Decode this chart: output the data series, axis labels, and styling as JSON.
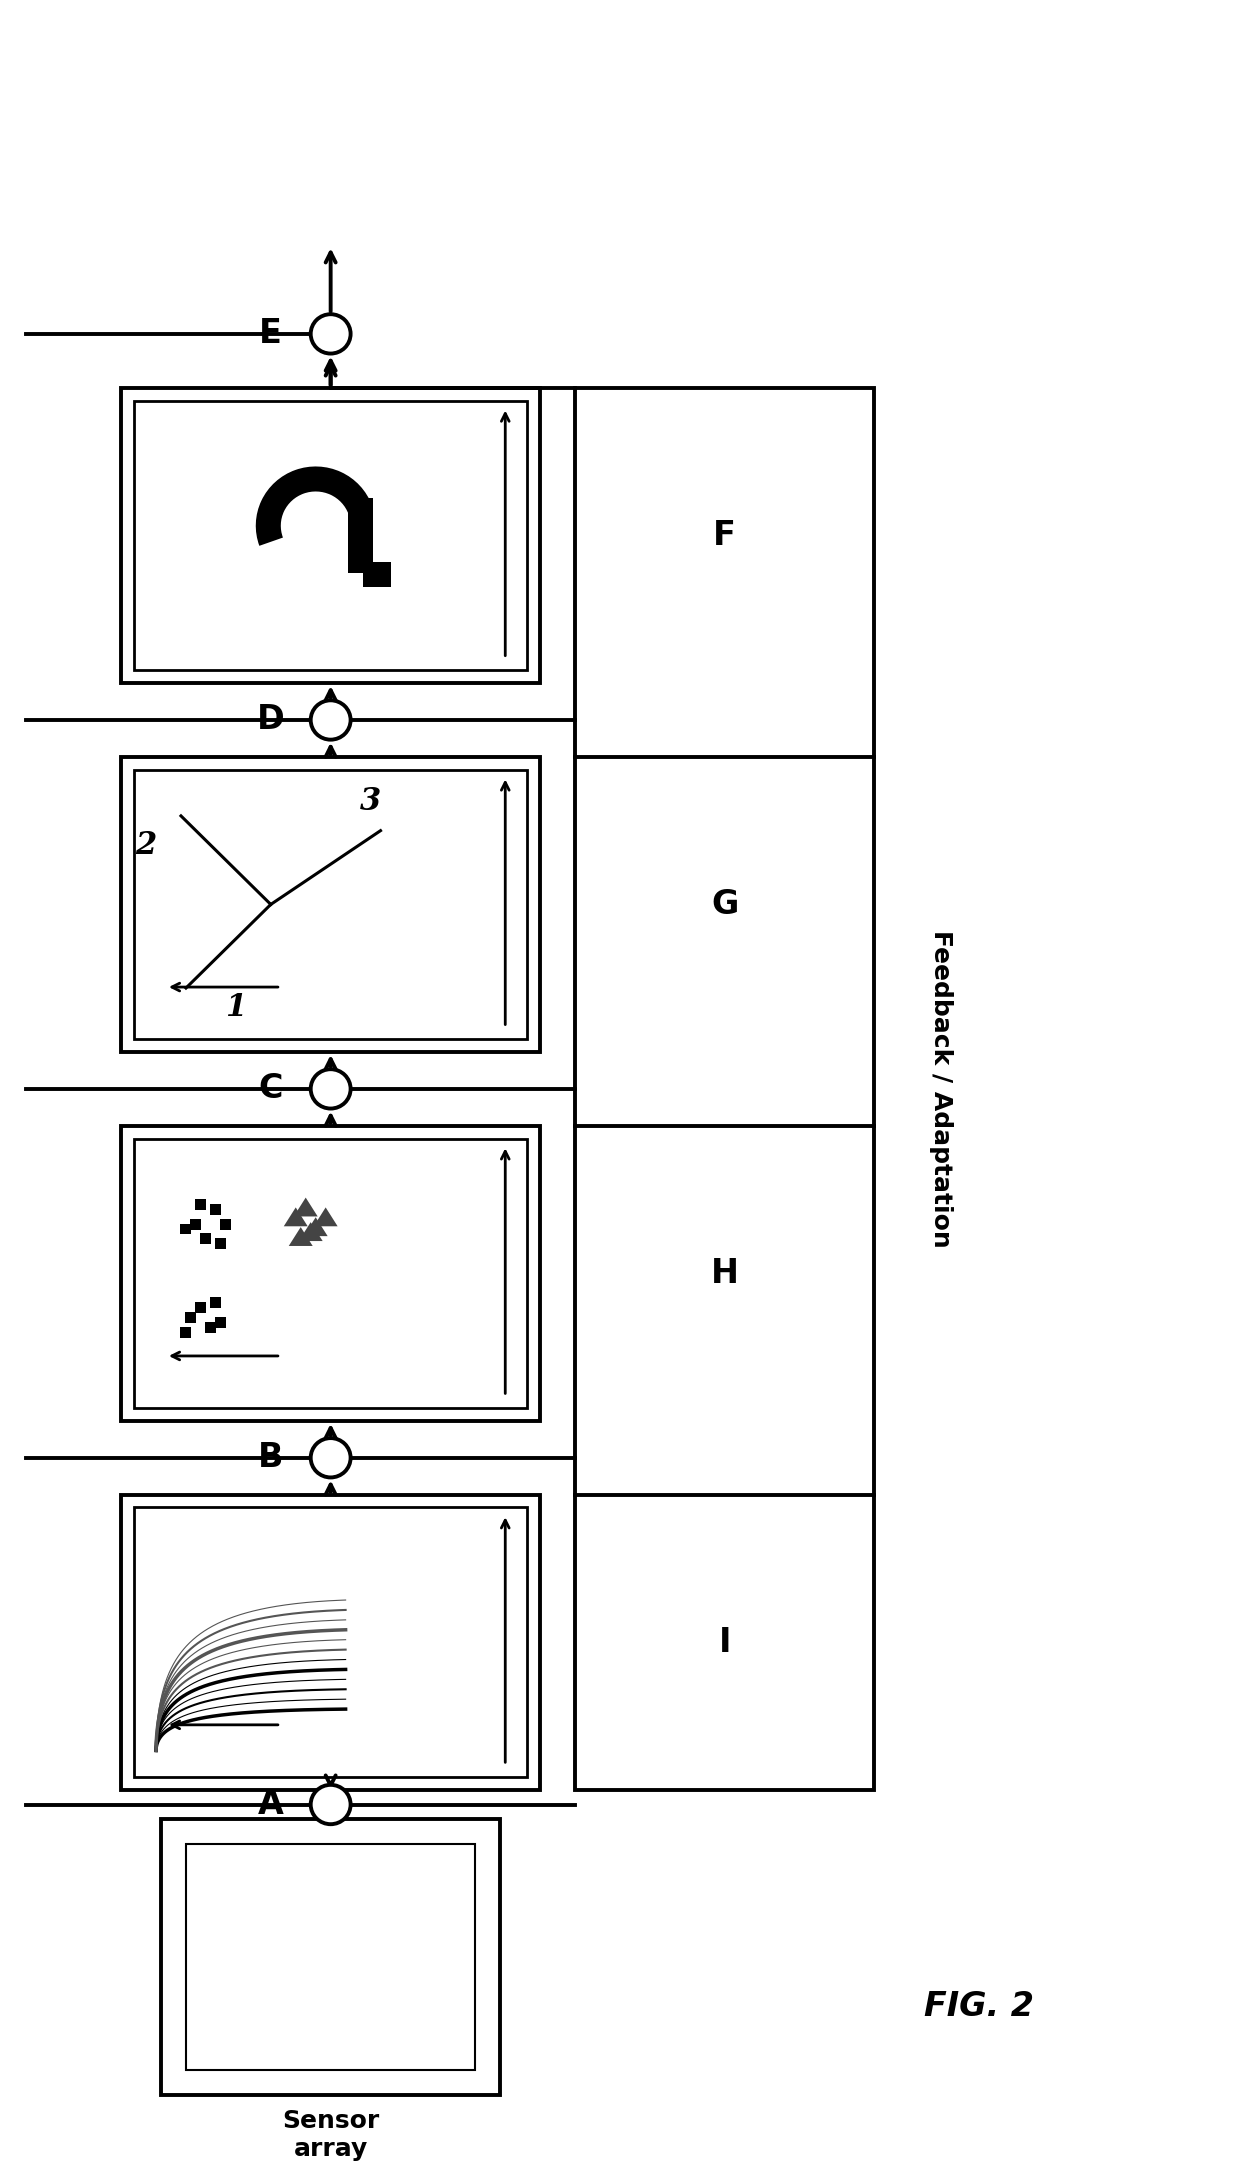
{
  "bg_color": "#ffffff",
  "fig_width": 12.4,
  "fig_height": 21.68,
  "fig_label": "FIG. 2",
  "feedback_label": "Feedback / Adaptation",
  "node_labels": [
    "A",
    "B",
    "C",
    "D",
    "E"
  ],
  "side_labels_map": {
    "F": "F",
    "G": "G",
    "H": "H",
    "I": "I"
  },
  "sensor_label": "Sensor\narray",
  "checkerboard_colors": [
    [
      "#444444",
      "#888888",
      "#cccccc",
      "#ffffff"
    ],
    [
      "#222222",
      "#666666",
      "#aaaaaa",
      "#dddddd"
    ],
    [
      "#000000",
      "#444444",
      "#888888",
      "#cccccc"
    ],
    [
      "#000000",
      "#ffffff",
      "#cccccc",
      "#000000"
    ]
  ]
}
